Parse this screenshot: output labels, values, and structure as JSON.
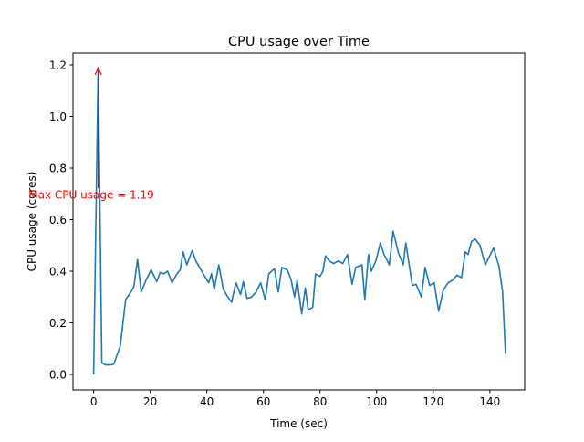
{
  "chart_data": {
    "type": "line",
    "title": "CPU usage over Time",
    "xlabel": "Time (sec)",
    "ylabel": "CPU usage (cores)",
    "xlim": [
      -7.3,
      152.3
    ],
    "ylim": [
      -0.06,
      1.246
    ],
    "xticks": [
      0,
      20,
      40,
      60,
      80,
      100,
      120,
      140
    ],
    "yticks": [
      0.0,
      0.2,
      0.4,
      0.6,
      0.8,
      1.0,
      1.2
    ],
    "grid": false,
    "line_color": "#1f77b4",
    "annotation": {
      "text": "Max CPU usage = 1.19",
      "color": "#ff0000",
      "point": [
        1.6,
        1.19
      ],
      "text_pos": [
        -23,
        0.7
      ]
    },
    "series": [
      {
        "x": [
          0,
          1.6,
          2.9,
          4.2,
          5.8,
          7.1,
          9.4,
          11.3,
          13.2,
          14.2,
          15.5,
          16.8,
          18.7,
          20.3,
          22.3,
          23.5,
          24.8,
          26.1,
          27.7,
          29.4,
          30.6,
          31.6,
          32.9,
          34.8,
          36.1,
          38.7,
          40.6,
          41.6,
          42.6,
          44.2,
          45.8,
          47.4,
          48.7,
          50.3,
          51.9,
          52.9,
          54.2,
          55.8,
          57.4,
          59.0,
          60.6,
          61.9,
          63.9,
          65.2,
          66.5,
          68.4,
          69.7,
          71.0,
          71.9,
          73.5,
          74.8,
          75.8,
          77.4,
          78.4,
          80,
          81,
          81.9,
          83.2,
          84.8,
          86.5,
          88,
          89.7,
          91.3,
          92.6,
          94.8,
          95.8,
          97.1,
          98.1,
          99.7,
          101.3,
          102.6,
          104.5,
          105.8,
          107.7,
          109.4,
          110.3,
          112.6,
          113.9,
          115.8,
          117.1,
          118.7,
          120.3,
          121.9,
          123.5,
          125.2,
          126.8,
          128.4,
          130,
          131.3,
          132.3,
          133.5,
          134.8,
          136.5,
          138.4,
          141.3,
          143.2,
          144.5,
          145.5
        ],
        "y": [
          0,
          1.19,
          0.045,
          0.037,
          0.037,
          0.04,
          0.11,
          0.29,
          0.32,
          0.34,
          0.445,
          0.32,
          0.37,
          0.405,
          0.36,
          0.395,
          0.39,
          0.4,
          0.355,
          0.39,
          0.405,
          0.475,
          0.425,
          0.48,
          0.44,
          0.39,
          0.355,
          0.39,
          0.33,
          0.425,
          0.33,
          0.3,
          0.28,
          0.355,
          0.31,
          0.36,
          0.295,
          0.3,
          0.32,
          0.355,
          0.29,
          0.39,
          0.41,
          0.32,
          0.415,
          0.405,
          0.37,
          0.3,
          0.365,
          0.235,
          0.335,
          0.25,
          0.26,
          0.39,
          0.38,
          0.4,
          0.46,
          0.44,
          0.43,
          0.44,
          0.43,
          0.465,
          0.35,
          0.415,
          0.425,
          0.29,
          0.465,
          0.4,
          0.44,
          0.51,
          0.465,
          0.425,
          0.555,
          0.47,
          0.425,
          0.51,
          0.345,
          0.35,
          0.3,
          0.415,
          0.345,
          0.355,
          0.245,
          0.325,
          0.355,
          0.365,
          0.385,
          0.375,
          0.475,
          0.465,
          0.515,
          0.525,
          0.5,
          0.425,
          0.49,
          0.42,
          0.32,
          0.08
        ]
      }
    ]
  }
}
